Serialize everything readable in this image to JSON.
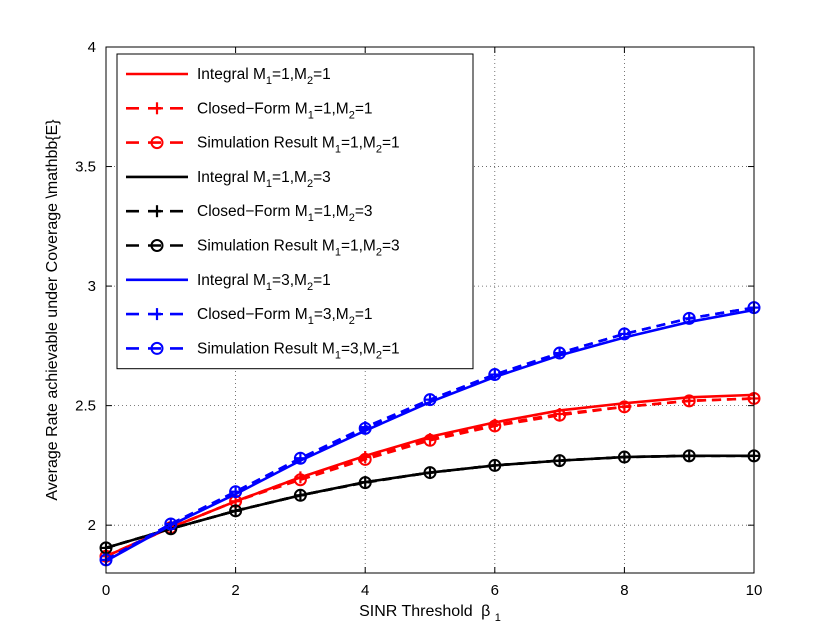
{
  "chart_data": {
    "type": "line",
    "title": "",
    "xlabel": "SINR Threshold",
    "xlabel_symbol": "β",
    "xlabel_subscript": "1",
    "ylabel": "Average Rate achievable under Coverage \\mathbb{E}",
    "xlim": [
      0,
      10
    ],
    "ylim": [
      1.8,
      4
    ],
    "x_ticks": [
      0,
      2,
      4,
      6,
      8,
      10
    ],
    "y_ticks": [
      2,
      2.5,
      3,
      3.5,
      4
    ],
    "y_tick_labels": [
      "2",
      "2.5",
      "3",
      "3.5",
      "4"
    ],
    "grid": true,
    "legend_position": "top-left",
    "x": [
      0,
      1,
      2,
      3,
      4,
      5,
      6,
      7,
      8,
      9,
      10
    ],
    "series": [
      {
        "name": "Integral M1=1,M2=1",
        "legend": {
          "prefix": "Integral M",
          "s1": "1",
          "mid": "=1,M",
          "s2": "2",
          "suffix": "=1"
        },
        "color": "#ff0000",
        "dash": "solid",
        "marker": "none",
        "values": [
          1.87,
          1.99,
          2.1,
          2.2,
          2.29,
          2.37,
          2.43,
          2.48,
          2.51,
          2.535,
          2.545
        ]
      },
      {
        "name": "Closed-Form M1=1,M2=1",
        "legend": {
          "prefix": "Closed−Form M",
          "s1": "1",
          "mid": "=1,M",
          "s2": "2",
          "suffix": "=1"
        },
        "color": "#ff0000",
        "dash": "dashed",
        "marker": "plus",
        "values": [
          1.87,
          1.99,
          2.1,
          2.2,
          2.285,
          2.36,
          2.42,
          2.465,
          2.495,
          2.52,
          2.53
        ]
      },
      {
        "name": "Simulation Result M1=1,M2=1",
        "legend": {
          "prefix": "Simulation Result M",
          "s1": "1",
          "mid": "=1,M",
          "s2": "2",
          "suffix": "=1"
        },
        "color": "#ff0000",
        "dash": "dashed",
        "marker": "circle",
        "values": [
          1.87,
          1.99,
          2.1,
          2.19,
          2.275,
          2.355,
          2.415,
          2.46,
          2.495,
          2.52,
          2.53
        ]
      },
      {
        "name": "Integral M1=1,M2=3",
        "legend": {
          "prefix": "Integral M",
          "s1": "1",
          "mid": "=1,M",
          "s2": "2",
          "suffix": "=3"
        },
        "color": "#000000",
        "dash": "solid",
        "marker": "none",
        "values": [
          1.905,
          1.985,
          2.06,
          2.125,
          2.18,
          2.22,
          2.25,
          2.27,
          2.285,
          2.29,
          2.29
        ]
      },
      {
        "name": "Closed-Form M1=1,M2=3",
        "legend": {
          "prefix": "Closed−Form M",
          "s1": "1",
          "mid": "=1,M",
          "s2": "2",
          "suffix": "=3"
        },
        "color": "#000000",
        "dash": "dashed",
        "marker": "plus",
        "values": [
          1.905,
          1.985,
          2.06,
          2.125,
          2.18,
          2.22,
          2.25,
          2.27,
          2.285,
          2.29,
          2.29
        ]
      },
      {
        "name": "Simulation Result M1=1,M2=3",
        "legend": {
          "prefix": "Simulation Result M",
          "s1": "1",
          "mid": "=1,M",
          "s2": "2",
          "suffix": "=3"
        },
        "color": "#000000",
        "dash": "dashed",
        "marker": "circle",
        "values": [
          1.905,
          1.985,
          2.06,
          2.125,
          2.178,
          2.22,
          2.25,
          2.27,
          2.285,
          2.29,
          2.29
        ]
      },
      {
        "name": "Integral M1=3,M2=1",
        "legend": {
          "prefix": "Integral M",
          "s1": "1",
          "mid": "=3,M",
          "s2": "2",
          "suffix": "=1"
        },
        "color": "#0000ff",
        "dash": "solid",
        "marker": "none",
        "values": [
          1.85,
          2.0,
          2.13,
          2.27,
          2.395,
          2.515,
          2.62,
          2.71,
          2.785,
          2.85,
          2.9
        ]
      },
      {
        "name": "Closed-Form M1=3,M2=1",
        "legend": {
          "prefix": "Closed−Form M",
          "s1": "1",
          "mid": "=3,M",
          "s2": "2",
          "suffix": "=1"
        },
        "color": "#0000ff",
        "dash": "dashed",
        "marker": "plus",
        "values": [
          1.855,
          2.005,
          2.14,
          2.28,
          2.41,
          2.525,
          2.63,
          2.72,
          2.8,
          2.865,
          2.91
        ]
      },
      {
        "name": "Simulation Result M1=3,M2=1",
        "legend": {
          "prefix": "Simulation Result M",
          "s1": "1",
          "mid": "=3,M",
          "s2": "2",
          "suffix": "=1"
        },
        "color": "#0000ff",
        "dash": "dashed",
        "marker": "circle",
        "values": [
          1.855,
          2.005,
          2.14,
          2.28,
          2.405,
          2.525,
          2.63,
          2.72,
          2.8,
          2.865,
          2.91
        ]
      }
    ]
  }
}
